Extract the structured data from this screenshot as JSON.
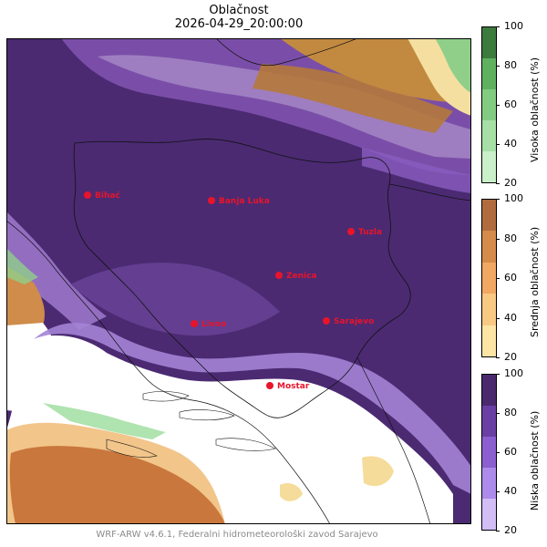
{
  "title": "Oblačnost",
  "timestamp": "2026-04-29_20:00:00",
  "credit": "WRF-ARW v4.6.1, Federalni hidrometeorološki zavod Sarajevo",
  "cities": [
    {
      "name": "Bihać"
    },
    {
      "name": "Banja Luka"
    },
    {
      "name": "Tuzla"
    },
    {
      "name": "Zenica"
    },
    {
      "name": "Sarajevo"
    },
    {
      "name": "Livno"
    },
    {
      "name": "Mostar"
    }
  ],
  "colorbars": {
    "high": {
      "label": "Visoka oblačnost (%)",
      "ticks": [
        "100",
        "80",
        "60",
        "40",
        "20"
      ],
      "colors": [
        "#3d7a3d",
        "#5fb15f",
        "#82cc82",
        "#a6e0a6",
        "#c9f0c9"
      ]
    },
    "mid": {
      "label": "Srednja oblačnost (%)",
      "ticks": [
        "100",
        "80",
        "60",
        "40",
        "20"
      ],
      "colors": [
        "#b06c3e",
        "#d58b4a",
        "#f0a862",
        "#f8c983",
        "#fde5a6"
      ]
    },
    "low": {
      "label": "Niska oblačnost (%)",
      "ticks": [
        "100",
        "80",
        "60",
        "40",
        "20"
      ],
      "colors": [
        "#4a2a6e",
        "#6a3fa3",
        "#8b5fd0",
        "#ad8bea",
        "#d2bdf5"
      ]
    }
  },
  "colors": {
    "city_marker": "#e8142a"
  }
}
